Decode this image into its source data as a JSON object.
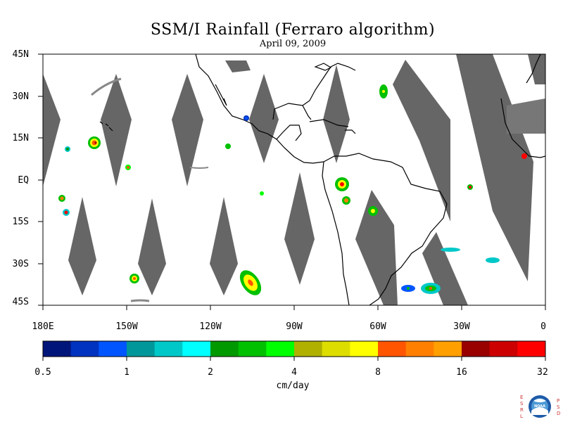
{
  "title": "SSM/I Rainfall (Ferraro algorithm)",
  "subtitle": "April 09, 2009",
  "lat_labels": [
    "45N",
    "30N",
    "15N",
    "EQ",
    "15S",
    "30S",
    "45S"
  ],
  "lon_labels": [
    "180E",
    "150W",
    "120W",
    "90W",
    "60W",
    "30W",
    "0"
  ],
  "colorbar": {
    "unit": "cm/day",
    "labels": [
      "0.5",
      "1",
      "2",
      "4",
      "8",
      "16",
      "32"
    ],
    "colors": [
      "#00157a",
      "#0033c0",
      "#0055ff",
      "#00979a",
      "#00c8c8",
      "#00ffff",
      "#009900",
      "#00c000",
      "#00ff00",
      "#b0b000",
      "#dddd00",
      "#ffff00",
      "#ff5500",
      "#ff7f00",
      "#ff9f00",
      "#990000",
      "#cc0000",
      "#ff0000"
    ]
  },
  "colors": {
    "swath_gap": "#666666",
    "land_outline": "#000000",
    "background": "#ffffff"
  },
  "logo": {
    "left_letters": "ESRL",
    "right_letters": "PSD",
    "badge_text": "NOAA"
  }
}
